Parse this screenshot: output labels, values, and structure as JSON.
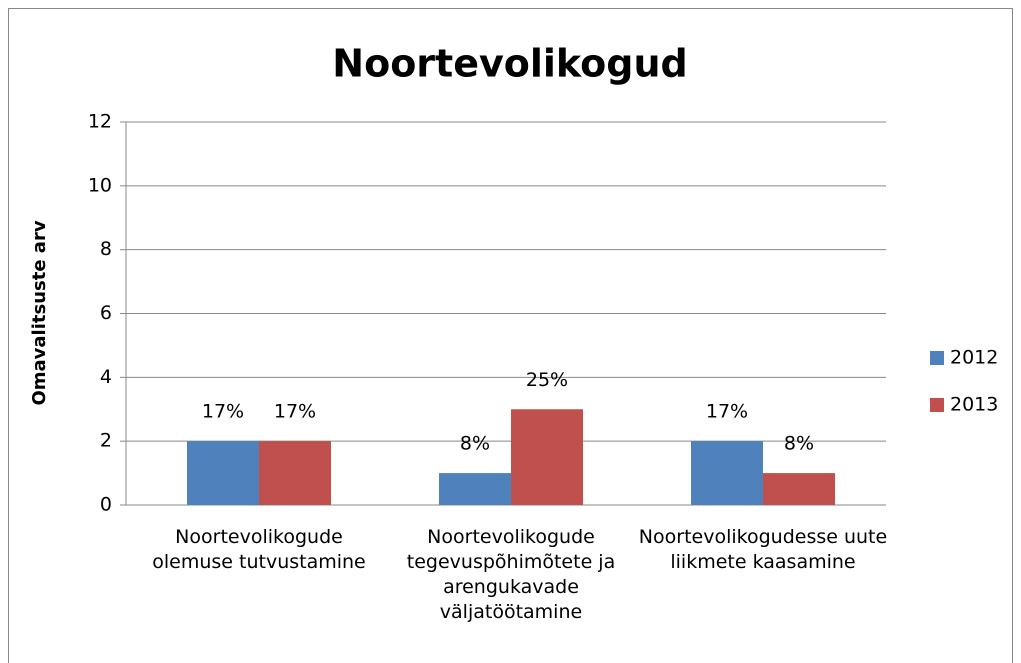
{
  "chart_data": {
    "type": "bar",
    "title": "Noortevolikogud",
    "y_label": "Omavalitsuste arv",
    "categories": [
      "Noortevolikogude olemuse tutvustamine",
      "Noortevolikogude tegevuspõhimõtete ja arengukavade väljatöötamine",
      "Noortevolikogudesse uute liikmete kaasamine"
    ],
    "series": [
      {
        "name": "2012",
        "color": "#4f81bd",
        "values": [
          2,
          1,
          2
        ],
        "value_labels": [
          "17%",
          "8%",
          "17%"
        ]
      },
      {
        "name": "2013",
        "color": "#c0504d",
        "values": [
          2,
          3,
          1
        ],
        "value_labels": [
          "17%",
          "25%",
          "8%"
        ]
      }
    ],
    "ylim": [
      0,
      12
    ],
    "yticks": [
      0,
      2,
      4,
      6,
      8,
      10,
      12
    ],
    "grid": true,
    "legend": "right"
  }
}
